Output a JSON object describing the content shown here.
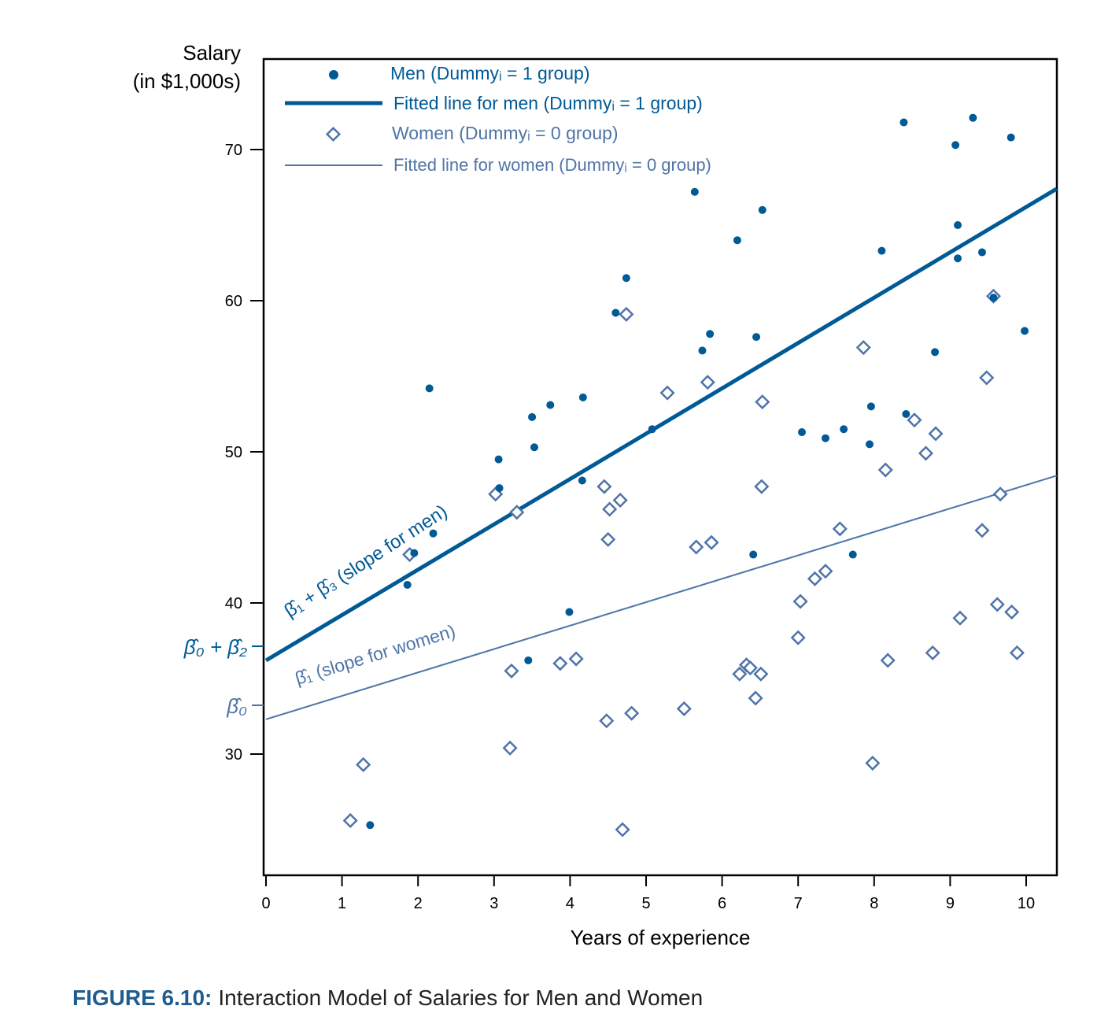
{
  "chart_data": {
    "type": "scatter",
    "ylabel_line1": "Salary",
    "ylabel_line2": "(in $1,000s)",
    "xlabel": "Years of experience",
    "xlim": [
      0,
      10.4
    ],
    "ylim": [
      22.5,
      75.5
    ],
    "xticks": [
      0,
      1,
      2,
      3,
      4,
      5,
      6,
      7,
      8,
      9,
      10
    ],
    "yticks": [
      30,
      40,
      50,
      60,
      70
    ],
    "grid": false,
    "legend_position": "top-left",
    "colors": {
      "men": "#005a96",
      "women": "#4f74a8",
      "axis": "#000000"
    },
    "legend": {
      "men": "Men (Dummyᵢ = 1 group)",
      "men_fit": "Fitted line for men (Dummyᵢ = 1 group)",
      "women": "Women (Dummyᵢ = 0 group)",
      "women_fit": "Fitted line for women (Dummyᵢ = 0 group)"
    },
    "series": [
      {
        "name": "Men (Dummyᵢ = 1 group)",
        "marker": "dot",
        "points": [
          [
            1.37,
            25.3
          ],
          [
            1.86,
            41.2
          ],
          [
            1.95,
            43.3
          ],
          [
            2.15,
            54.2
          ],
          [
            2.2,
            44.6
          ],
          [
            3.06,
            49.5
          ],
          [
            3.07,
            47.6
          ],
          [
            3.45,
            36.2
          ],
          [
            3.5,
            52.3
          ],
          [
            3.53,
            50.3
          ],
          [
            3.74,
            53.1
          ],
          [
            3.99,
            39.4
          ],
          [
            4.16,
            48.1
          ],
          [
            4.17,
            53.6
          ],
          [
            4.6,
            59.2
          ],
          [
            4.74,
            61.5
          ],
          [
            5.08,
            51.5
          ],
          [
            5.64,
            67.2
          ],
          [
            5.74,
            56.7
          ],
          [
            5.84,
            57.8
          ],
          [
            6.2,
            64.0
          ],
          [
            6.41,
            43.2
          ],
          [
            6.45,
            57.6
          ],
          [
            6.53,
            66.0
          ],
          [
            7.05,
            51.3
          ],
          [
            7.36,
            50.9
          ],
          [
            7.6,
            51.5
          ],
          [
            7.72,
            43.2
          ],
          [
            7.94,
            50.5
          ],
          [
            7.96,
            53.0
          ],
          [
            8.1,
            63.3
          ],
          [
            8.39,
            71.8
          ],
          [
            8.42,
            52.5
          ],
          [
            8.8,
            56.6
          ],
          [
            9.07,
            70.3
          ],
          [
            9.1,
            65.0
          ],
          [
            9.1,
            62.8
          ],
          [
            9.3,
            72.1
          ],
          [
            9.42,
            63.2
          ],
          [
            9.57,
            60.2
          ],
          [
            9.8,
            70.8
          ],
          [
            9.98,
            58.0
          ]
        ]
      },
      {
        "name": "Women (Dummyᵢ = 0 group)",
        "marker": "diamond",
        "points": [
          [
            1.11,
            25.6
          ],
          [
            1.28,
            29.3
          ],
          [
            1.89,
            43.2
          ],
          [
            3.02,
            47.2
          ],
          [
            3.21,
            30.4
          ],
          [
            3.23,
            35.5
          ],
          [
            3.3,
            46.0
          ],
          [
            3.87,
            36.0
          ],
          [
            4.08,
            36.3
          ],
          [
            4.45,
            47.7
          ],
          [
            4.48,
            32.2
          ],
          [
            4.5,
            44.2
          ],
          [
            4.52,
            46.2
          ],
          [
            4.66,
            46.8
          ],
          [
            4.69,
            25.0
          ],
          [
            4.74,
            59.1
          ],
          [
            4.81,
            32.7
          ],
          [
            5.28,
            53.9
          ],
          [
            5.5,
            33.0
          ],
          [
            5.66,
            43.7
          ],
          [
            5.81,
            54.6
          ],
          [
            5.86,
            44.0
          ],
          [
            6.23,
            35.3
          ],
          [
            6.32,
            35.9
          ],
          [
            6.37,
            35.7
          ],
          [
            6.44,
            33.7
          ],
          [
            6.51,
            35.3
          ],
          [
            6.52,
            47.7
          ],
          [
            6.53,
            53.3
          ],
          [
            7.0,
            37.7
          ],
          [
            7.03,
            40.1
          ],
          [
            7.22,
            41.6
          ],
          [
            7.36,
            42.1
          ],
          [
            7.55,
            44.9
          ],
          [
            7.86,
            56.9
          ],
          [
            7.98,
            29.4
          ],
          [
            8.15,
            48.8
          ],
          [
            8.18,
            36.2
          ],
          [
            8.53,
            52.1
          ],
          [
            8.68,
            49.9
          ],
          [
            8.77,
            36.7
          ],
          [
            8.81,
            51.2
          ],
          [
            9.13,
            39.0
          ],
          [
            9.42,
            44.8
          ],
          [
            9.48,
            54.9
          ],
          [
            9.57,
            60.3
          ],
          [
            9.62,
            39.9
          ],
          [
            9.66,
            47.2
          ],
          [
            9.81,
            39.4
          ],
          [
            9.88,
            36.7
          ]
        ]
      }
    ],
    "fitted_lines": [
      {
        "name": "Fitted line for men (Dummyᵢ = 1 group)",
        "intercept": 36.2,
        "slope": 3.0,
        "x_range": [
          0,
          10.4
        ]
      },
      {
        "name": "Fitted line for women (Dummyᵢ = 0 group)",
        "intercept": 32.3,
        "slope": 1.55,
        "x_range": [
          0,
          10.4
        ]
      }
    ],
    "annotations": {
      "men_slope": "β̂₁ + β̂₃ (slope for men)",
      "women_slope": "β̂₁ (slope for women)",
      "intercept_men": "β̂₀ + β̂₂",
      "intercept_women": "β̂₀"
    }
  },
  "caption": {
    "label": "FIGURE 6.10:",
    "text": "Interaction Model of Salaries for Men and Women"
  }
}
